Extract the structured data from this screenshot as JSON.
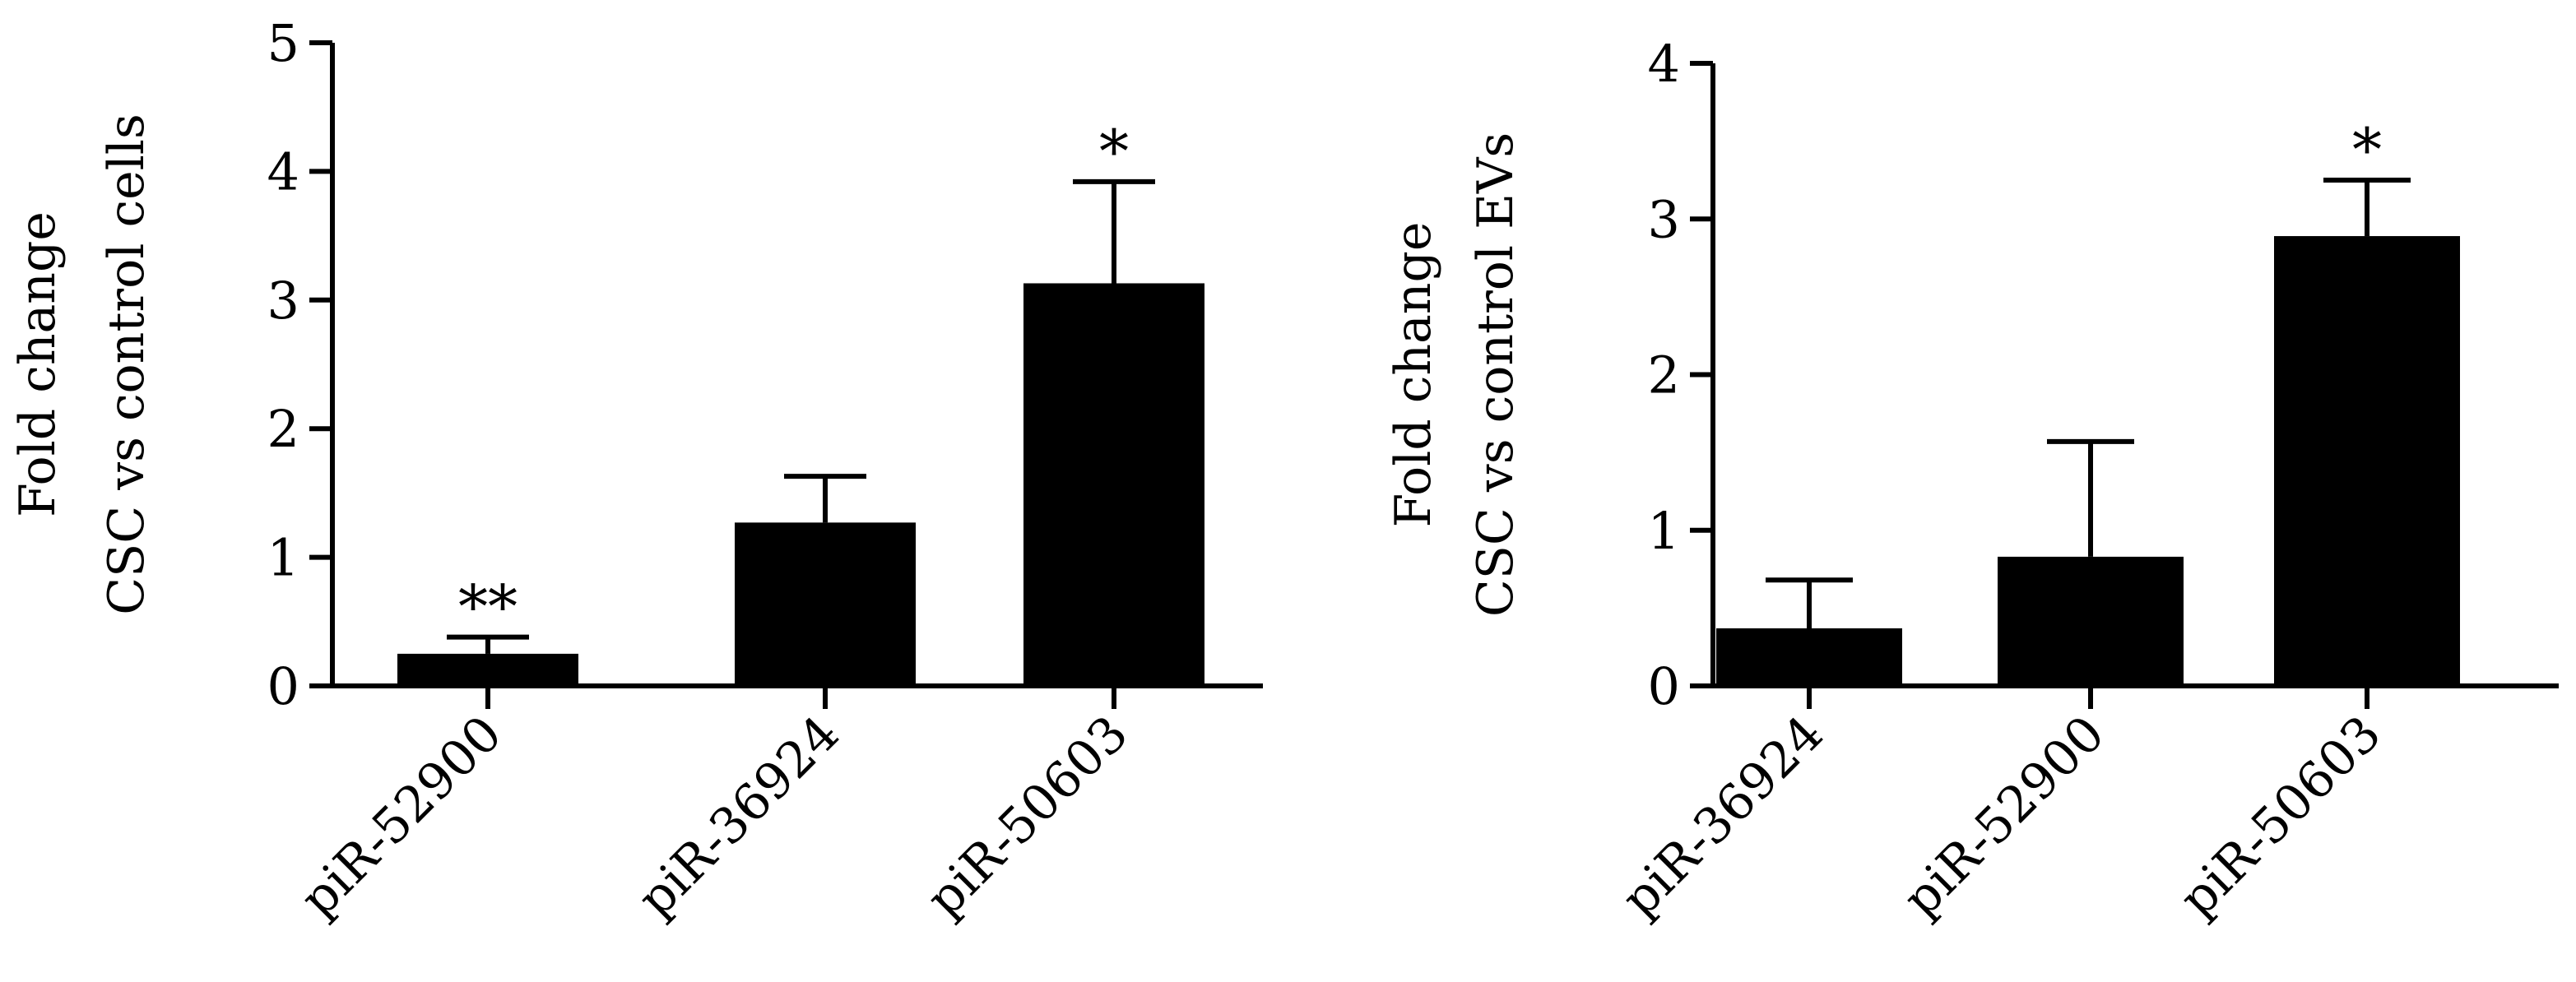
{
  "chart_data": [
    {
      "type": "bar",
      "ylabel_lines": [
        "Fold change",
        "CSC vs control cells"
      ],
      "categories": [
        "piR-52900",
        "piR-36924",
        "piR-50603"
      ],
      "values": [
        0.25,
        1.27,
        3.13
      ],
      "error_upper": [
        0.38,
        1.63,
        3.92
      ],
      "significance": [
        "**",
        "",
        "*"
      ],
      "ylim": [
        0,
        5
      ],
      "yticks": [
        0,
        1,
        2,
        3,
        4,
        5
      ],
      "bar_color": "#000000"
    },
    {
      "type": "bar",
      "ylabel_lines": [
        "Fold change",
        "CSC vs control EVs"
      ],
      "categories": [
        "piR-36924",
        "piR-52900",
        "piR-50603"
      ],
      "values": [
        0.37,
        0.83,
        2.89
      ],
      "error_upper": [
        0.68,
        1.57,
        3.25
      ],
      "significance": [
        "",
        "",
        "*"
      ],
      "ylim": [
        0,
        4
      ],
      "yticks": [
        0,
        1,
        2,
        3,
        4
      ],
      "bar_color": "#000000"
    }
  ]
}
